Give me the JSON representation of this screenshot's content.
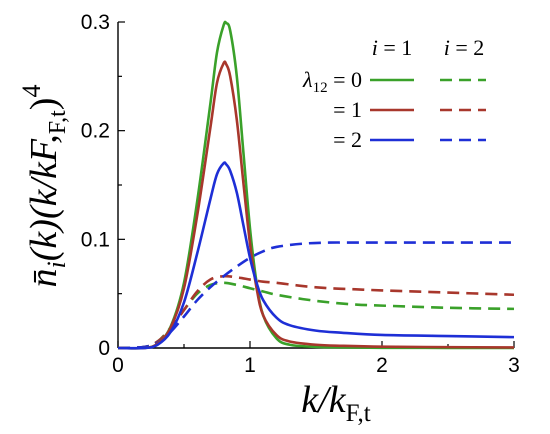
{
  "chart_data": {
    "type": "line",
    "ylabel": "n̄i(k)(k/kF,t)4",
    "xlabel": "k/kF,t",
    "xlim": [
      0,
      3
    ],
    "ylim": [
      0,
      0.3
    ],
    "xticks": [
      0,
      1,
      2,
      3
    ],
    "xtick_labels": [
      "0",
      "1",
      "2",
      "3"
    ],
    "yticks": [
      0,
      0.1,
      0.2,
      0.3
    ],
    "ytick_labels": [
      "0",
      "0.1",
      "0.2",
      "0.3"
    ],
    "grid": false,
    "legend_placement": "top-right",
    "legend": {
      "col_header_1": "i = 1",
      "col_header_2": "i = 2",
      "row_labels": [
        "λ12 = 0",
        "= 1",
        "= 2"
      ]
    },
    "colors": {
      "green": "#3aa12a",
      "red": "#a8372c",
      "blue": "#1e2fd6"
    },
    "series": [
      {
        "name": "λ12 = 0, i = 1",
        "color": "#3aa12a",
        "style": "solid",
        "x": [
          0,
          0.2,
          0.3,
          0.4,
          0.5,
          0.6,
          0.7,
          0.75,
          0.8,
          0.82,
          0.85,
          0.9,
          0.95,
          1.0,
          1.05,
          1.1,
          1.2,
          1.3,
          1.5,
          1.7,
          2.0,
          2.5,
          3.0
        ],
        "y": [
          0,
          0.0,
          0.004,
          0.02,
          0.06,
          0.135,
          0.225,
          0.272,
          0.297,
          0.299,
          0.292,
          0.25,
          0.18,
          0.11,
          0.06,
          0.03,
          0.009,
          0.003,
          0.001,
          0.0005,
          0.0002,
          0.0001,
          0.0001
        ]
      },
      {
        "name": "λ12 = 1, i = 1",
        "color": "#a8372c",
        "style": "solid",
        "x": [
          0,
          0.2,
          0.3,
          0.4,
          0.5,
          0.6,
          0.7,
          0.75,
          0.8,
          0.82,
          0.85,
          0.9,
          0.95,
          1.0,
          1.05,
          1.1,
          1.2,
          1.3,
          1.5,
          1.7,
          2.0,
          2.5,
          3.0
        ],
        "y": [
          0,
          0.0,
          0.004,
          0.019,
          0.055,
          0.122,
          0.203,
          0.244,
          0.262,
          0.261,
          0.25,
          0.21,
          0.152,
          0.096,
          0.055,
          0.03,
          0.012,
          0.006,
          0.003,
          0.002,
          0.0012,
          0.0008,
          0.0005
        ]
      },
      {
        "name": "λ12 = 2, i = 1",
        "color": "#1e2fd6",
        "style": "solid",
        "x": [
          0,
          0.2,
          0.3,
          0.4,
          0.5,
          0.6,
          0.7,
          0.75,
          0.8,
          0.82,
          0.85,
          0.9,
          0.95,
          1.0,
          1.05,
          1.1,
          1.2,
          1.3,
          1.5,
          1.7,
          2.0,
          2.5,
          3.0
        ],
        "y": [
          0,
          0.0,
          0.003,
          0.015,
          0.042,
          0.087,
          0.137,
          0.16,
          0.17,
          0.169,
          0.163,
          0.143,
          0.113,
          0.083,
          0.06,
          0.044,
          0.028,
          0.021,
          0.016,
          0.014,
          0.012,
          0.011,
          0.01
        ]
      },
      {
        "name": "λ12 = 0, i = 2",
        "color": "#3aa12a",
        "style": "dashed",
        "x": [
          0,
          0.2,
          0.3,
          0.4,
          0.5,
          0.6,
          0.7,
          0.8,
          0.9,
          1.0,
          1.1,
          1.2,
          1.4,
          1.6,
          1.8,
          2.0,
          2.5,
          3.0
        ],
        "y": [
          0,
          0.001,
          0.006,
          0.019,
          0.035,
          0.05,
          0.058,
          0.06,
          0.058,
          0.055,
          0.052,
          0.049,
          0.045,
          0.042,
          0.04,
          0.039,
          0.037,
          0.036
        ]
      },
      {
        "name": "λ12 = 1, i = 2",
        "color": "#a8372c",
        "style": "dashed",
        "x": [
          0,
          0.2,
          0.3,
          0.4,
          0.5,
          0.6,
          0.7,
          0.8,
          0.9,
          1.0,
          1.1,
          1.2,
          1.4,
          1.6,
          1.8,
          2.0,
          2.5,
          3.0
        ],
        "y": [
          0,
          0.001,
          0.006,
          0.018,
          0.035,
          0.052,
          0.063,
          0.066,
          0.065,
          0.063,
          0.061,
          0.06,
          0.057,
          0.055,
          0.054,
          0.053,
          0.051,
          0.049
        ]
      },
      {
        "name": "λ12 = 2, i = 2",
        "color": "#1e2fd6",
        "style": "dashed",
        "x": [
          0,
          0.2,
          0.3,
          0.4,
          0.5,
          0.6,
          0.7,
          0.8,
          0.9,
          1.0,
          1.1,
          1.2,
          1.4,
          1.6,
          1.8,
          2.0,
          2.5,
          3.0
        ],
        "y": [
          0,
          0.001,
          0.005,
          0.015,
          0.029,
          0.044,
          0.056,
          0.066,
          0.075,
          0.083,
          0.089,
          0.093,
          0.096,
          0.097,
          0.097,
          0.097,
          0.097,
          0.097
        ]
      }
    ]
  }
}
